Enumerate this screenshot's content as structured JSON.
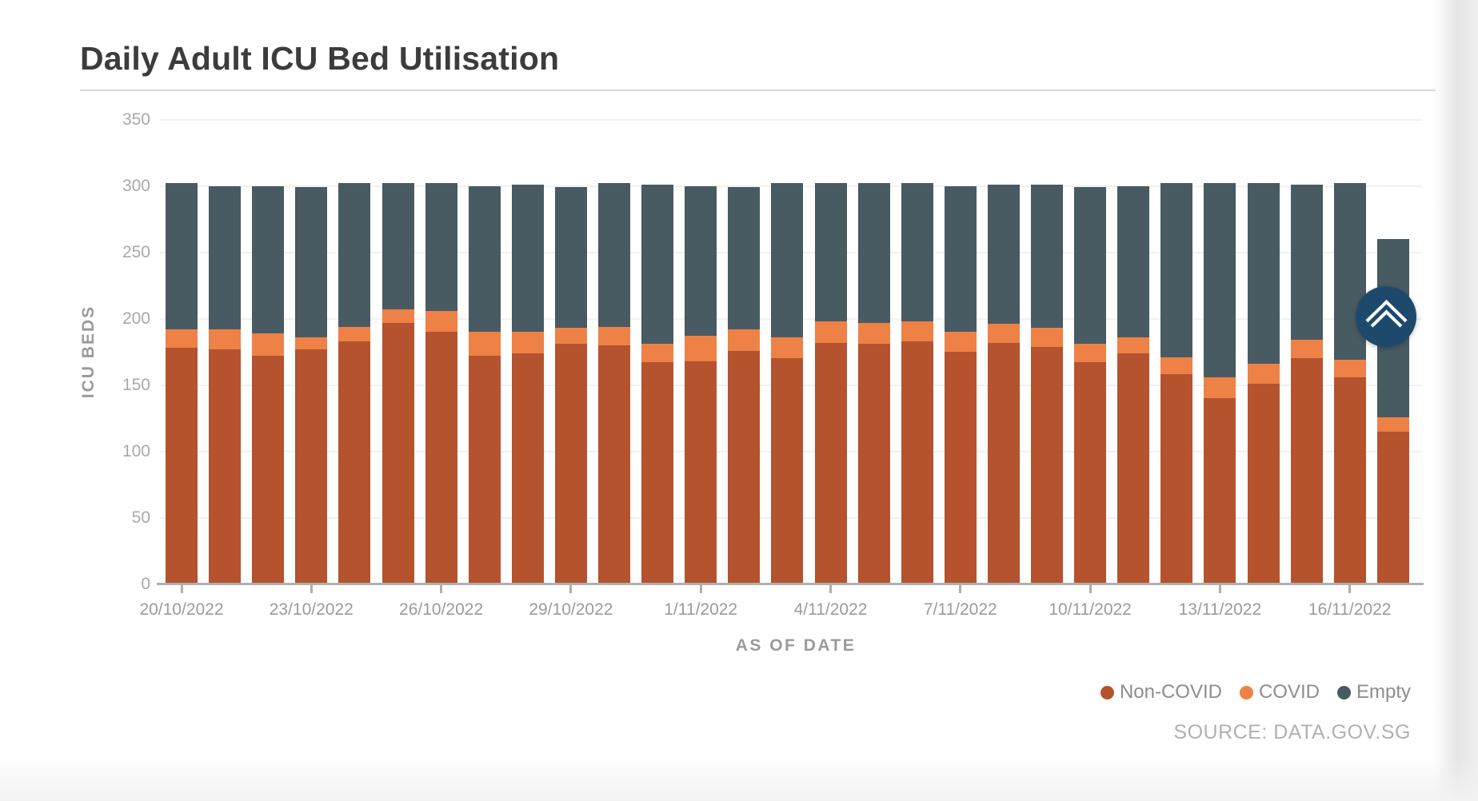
{
  "chart_data": {
    "type": "bar",
    "stacked": true,
    "title": "Daily Adult ICU Bed Utilisation",
    "xlabel": "AS OF DATE",
    "ylabel": "ICU BEDS",
    "ylim": [
      0,
      350
    ],
    "y_ticks": [
      350,
      300,
      250,
      200,
      150,
      100,
      50,
      0
    ],
    "x_tick_every": 3,
    "grid": "horizontal",
    "legend_position": "bottom-right",
    "categories": [
      "20/10/2022",
      "21/10/2022",
      "22/10/2022",
      "23/10/2022",
      "24/10/2022",
      "25/10/2022",
      "26/10/2022",
      "27/10/2022",
      "28/10/2022",
      "29/10/2022",
      "30/10/2022",
      "31/10/2022",
      "1/11/2022",
      "2/11/2022",
      "3/11/2022",
      "4/11/2022",
      "5/11/2022",
      "6/11/2022",
      "7/11/2022",
      "8/11/2022",
      "9/11/2022",
      "10/11/2022",
      "11/11/2022",
      "12/11/2022",
      "13/11/2022",
      "14/11/2022",
      "15/11/2022",
      "16/11/2022",
      "17/11/2022"
    ],
    "series": [
      {
        "name": "Non-COVID",
        "color": "#B4532E",
        "values": [
          177,
          176,
          171,
          176,
          182,
          196,
          189,
          171,
          173,
          180,
          179,
          166,
          167,
          175,
          169,
          181,
          180,
          182,
          174,
          181,
          178,
          166,
          173,
          157,
          139,
          150,
          169,
          155,
          114
        ]
      },
      {
        "name": "COVID",
        "color": "#EE8146",
        "values": [
          14,
          15,
          17,
          9,
          11,
          10,
          16,
          18,
          16,
          12,
          14,
          14,
          19,
          16,
          16,
          16,
          16,
          15,
          15,
          14,
          14,
          14,
          12,
          13,
          16,
          15,
          14,
          13,
          11
        ]
      },
      {
        "name": "Empty",
        "color": "#485A62",
        "values": [
          110,
          108,
          111,
          113,
          108,
          95,
          96,
          110,
          111,
          106,
          108,
          120,
          113,
          107,
          116,
          104,
          105,
          104,
          110,
          105,
          108,
          118,
          114,
          131,
          146,
          136,
          117,
          133,
          134
        ]
      }
    ]
  },
  "footer": {
    "source": "SOURCE: DATA.GOV.SG"
  },
  "controls": {
    "scroll_top_button": {
      "icon": "chevron-up-icon",
      "color": "#1D4A6C"
    }
  }
}
